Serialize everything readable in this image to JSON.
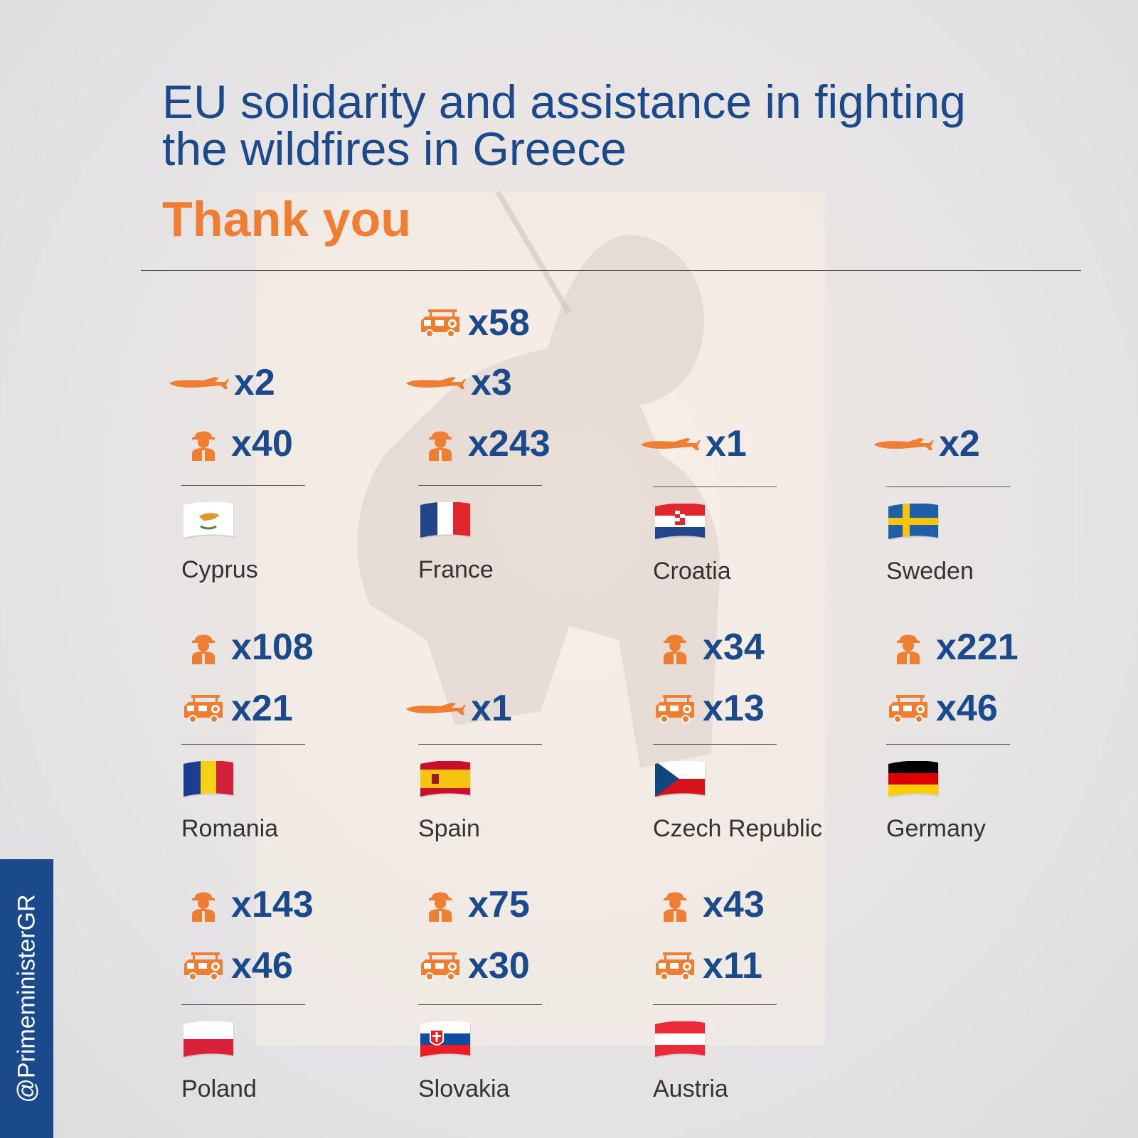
{
  "title": "EU solidarity and assistance in fighting the wildfires in Greece",
  "subtitle": "Thank you",
  "handle": "@PrimeministerGR",
  "colors": {
    "blue": "#1a4a8c",
    "orange": "#ef7d32"
  },
  "countries": [
    {
      "name": "Cyprus",
      "stats": [
        {
          "icon": "airplane-icon",
          "count": "x2"
        },
        {
          "icon": "firefighter-icon",
          "count": "x40"
        }
      ]
    },
    {
      "name": "France",
      "stats": [
        {
          "icon": "fire-truck-icon",
          "count": "x58"
        },
        {
          "icon": "airplane-icon",
          "count": "x3"
        },
        {
          "icon": "firefighter-icon",
          "count": "x243"
        }
      ]
    },
    {
      "name": "Croatia",
      "stats": [
        {
          "icon": "airplane-icon",
          "count": "x1"
        }
      ]
    },
    {
      "name": "Sweden",
      "stats": [
        {
          "icon": "airplane-icon",
          "count": "x2"
        }
      ]
    },
    {
      "name": "Romania",
      "stats": [
        {
          "icon": "firefighter-icon",
          "count": "x108"
        },
        {
          "icon": "fire-truck-icon",
          "count": "x21"
        }
      ]
    },
    {
      "name": "Spain",
      "stats": [
        {
          "icon": "airplane-icon",
          "count": "x1"
        }
      ]
    },
    {
      "name": "Czech Republic",
      "stats": [
        {
          "icon": "firefighter-icon",
          "count": "x34"
        },
        {
          "icon": "fire-truck-icon",
          "count": "x13"
        }
      ]
    },
    {
      "name": "Germany",
      "stats": [
        {
          "icon": "firefighter-icon",
          "count": "x221"
        },
        {
          "icon": "fire-truck-icon",
          "count": "x46"
        }
      ]
    },
    {
      "name": "Poland",
      "stats": [
        {
          "icon": "firefighter-icon",
          "count": "x143"
        },
        {
          "icon": "fire-truck-icon",
          "count": "x46"
        }
      ]
    },
    {
      "name": "Slovakia",
      "stats": [
        {
          "icon": "firefighter-icon",
          "count": "x75"
        },
        {
          "icon": "fire-truck-icon",
          "count": "x30"
        }
      ]
    },
    {
      "name": "Austria",
      "stats": [
        {
          "icon": "firefighter-icon",
          "count": "x43"
        },
        {
          "icon": "fire-truck-icon",
          "count": "x11"
        }
      ]
    }
  ]
}
